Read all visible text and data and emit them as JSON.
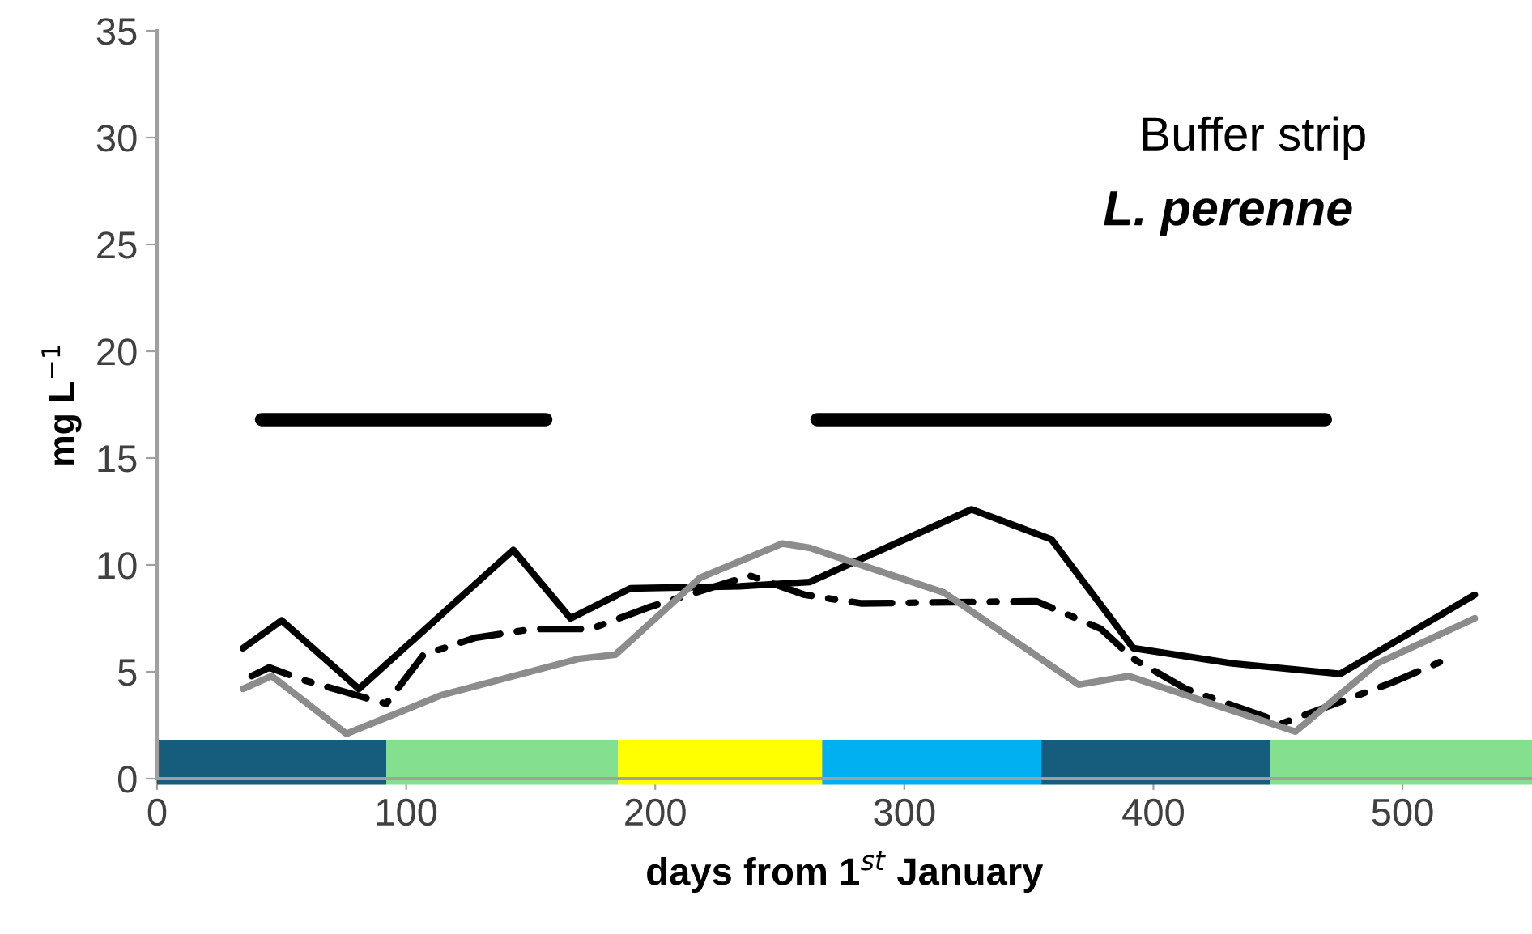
{
  "chart_data": {
    "type": "line",
    "xlabel": "days from 1$^{st}$ January",
    "ylabel": "mg L$^{−1}$",
    "annotations": [
      "Buffer strip",
      "L. perenne"
    ],
    "xlim": [
      0,
      552
    ],
    "xticks": [
      0,
      100,
      200,
      300,
      400,
      500
    ],
    "ylim": [
      0,
      35
    ],
    "yticks": [
      0,
      5,
      10,
      15,
      20,
      25,
      30,
      35
    ],
    "grid": false,
    "legend": false,
    "series": [
      {
        "color": "#000000",
        "line_style": "solid",
        "x": [
          34.5,
          50,
          81,
          143,
          166,
          190,
          234,
          262,
          327,
          359,
          392,
          431,
          475,
          529
        ],
        "values": [
          6.1,
          7.4,
          4.2,
          10.7,
          7.5,
          8.9,
          9.0,
          9.2,
          12.6,
          11.2,
          6.1,
          5.4,
          4.9,
          8.6
        ]
      },
      {
        "color": "#000000",
        "line_style": "dashdot",
        "x": [
          38,
          45,
          59,
          92,
          107,
          128,
          151,
          174,
          197,
          238,
          260,
          283,
          353,
          379,
          392,
          413,
          452,
          496,
          518
        ],
        "values": [
          4.8,
          5.2,
          4.6,
          3.5,
          5.8,
          6.6,
          7.0,
          7.0,
          8.0,
          9.5,
          8.6,
          8.2,
          8.3,
          7.0,
          5.6,
          4.2,
          2.6,
          4.5,
          5.6
        ]
      },
      {
        "color": "#8c8c8c",
        "line_style": "solid",
        "x": [
          34.5,
          46,
          76,
          114,
          169,
          184,
          218,
          251,
          262,
          316,
          370,
          390,
          457,
          490,
          529
        ],
        "values": [
          4.2,
          4.8,
          2.1,
          3.9,
          5.6,
          5.8,
          9.4,
          11.0,
          10.8,
          8.7,
          4.4,
          4.8,
          2.2,
          5.4,
          7.5
        ]
      },
      {
        "color": "#000000",
        "line_style": "solid",
        "x": [
          42,
          156
        ],
        "values": [
          16.8,
          16.8
        ]
      },
      {
        "color": "#000000",
        "line_style": "solid",
        "x": [
          265,
          469
        ],
        "values": [
          16.8,
          16.8
        ]
      }
    ],
    "bands": [
      {
        "axis": "x",
        "from": 0,
        "to": 92,
        "color": "#165c7d"
      },
      {
        "axis": "x",
        "from": 92,
        "to": 185,
        "color": "#84e08e"
      },
      {
        "axis": "x",
        "from": 185,
        "to": 267,
        "color": "#ffff00"
      },
      {
        "axis": "x",
        "from": 267,
        "to": 355,
        "color": "#00b0f0"
      },
      {
        "axis": "x",
        "from": 355,
        "to": 447,
        "color": "#165c7d"
      },
      {
        "axis": "x",
        "from": 447,
        "to": 552,
        "color": "#84e08e"
      }
    ]
  }
}
